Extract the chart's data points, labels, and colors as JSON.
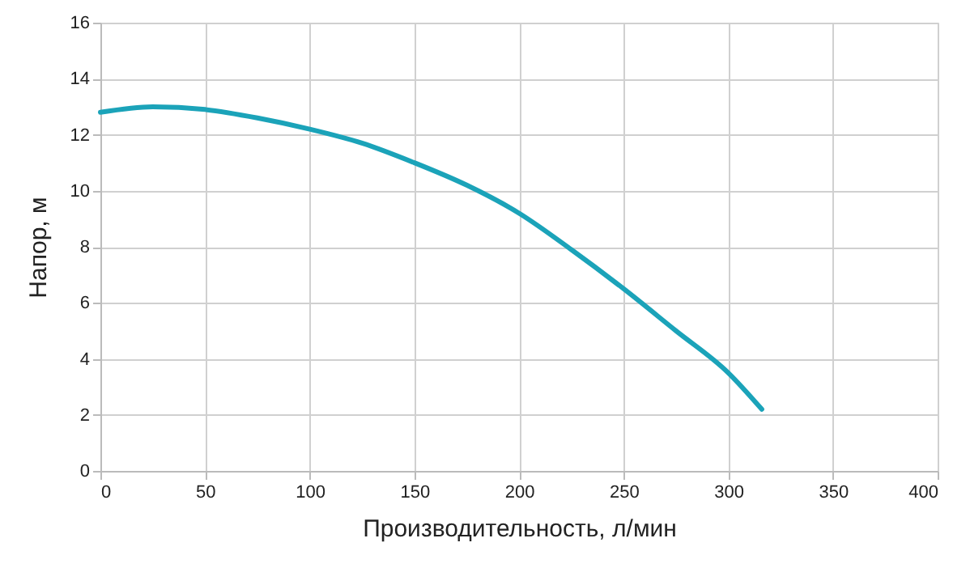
{
  "chart_data": {
    "type": "line",
    "xlabel": "Производительность, л/мин",
    "ylabel": "Напор, м",
    "x": [
      0,
      25,
      50,
      75,
      100,
      125,
      150,
      175,
      200,
      225,
      250,
      275,
      300,
      316
    ],
    "series": [
      {
        "color": "#1ba3b9",
        "values": [
          12.8,
          13.0,
          12.9,
          12.6,
          12.2,
          11.7,
          11.0,
          10.2,
          9.2,
          7.9,
          6.5,
          5.0,
          3.5,
          2.2
        ]
      }
    ],
    "xlim": [
      0,
      400
    ],
    "xticks": [
      0,
      50,
      100,
      150,
      200,
      250,
      300,
      350,
      400
    ],
    "ylim": [
      0,
      16
    ],
    "yticks": [
      0,
      2,
      4,
      6,
      8,
      10,
      12,
      14,
      16
    ],
    "grid": true,
    "marker": "none",
    "line_style": "solid"
  }
}
